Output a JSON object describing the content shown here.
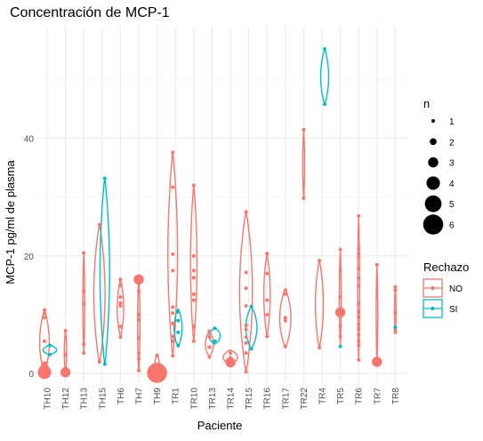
{
  "chart_data": {
    "type": "violin",
    "title": "Concentración de MCP-1",
    "xlabel": "Paciente",
    "ylabel": "MCP-1 pg/ml de plasma",
    "categories": [
      "TH10",
      "TH12",
      "TH13",
      "TH15",
      "TH6",
      "TH7",
      "TH9",
      "TR1",
      "TR10",
      "TR13",
      "TR14",
      "TR15",
      "TR16",
      "TR17",
      "TR22",
      "TR4",
      "TR5",
      "TR6",
      "TR7",
      "TR8"
    ],
    "ylim": [
      -1.5,
      59
    ],
    "yticks": [
      0,
      20,
      40
    ],
    "grid": true,
    "colors": {
      "NO": "#F8766D",
      "SI": "#00BFC4"
    },
    "legend_color": {
      "title": "Rechazo",
      "entries": [
        "NO",
        "SI"
      ],
      "placement": "right"
    },
    "legend_size": {
      "title": "n",
      "entries": [
        1,
        2,
        3,
        4,
        5,
        6
      ],
      "placement": "right"
    },
    "groups": [
      {
        "cat": "TH10",
        "rechazo": "NO",
        "ymin": 0,
        "ymax": 10.8,
        "width": 0.6
      },
      {
        "cat": "TH10",
        "rechazo": "SI",
        "ymin": 3.2,
        "ymax": 4.8,
        "width": 0.85
      },
      {
        "cat": "TH12",
        "rechazo": "NO",
        "ymin": 0,
        "ymax": 7.3,
        "width": 0.15
      },
      {
        "cat": "TH13",
        "rechazo": "NO",
        "ymin": 3.5,
        "ymax": 20.5,
        "width": 0.12
      },
      {
        "cat": "TH15",
        "rechazo": "NO",
        "ymin": 1.8,
        "ymax": 25.3,
        "width": 0.7
      },
      {
        "cat": "TH15",
        "rechazo": "SI",
        "ymin": 1.5,
        "ymax": 33.2,
        "width": 0.6
      },
      {
        "cat": "TH6",
        "rechazo": "NO",
        "ymin": 6.2,
        "ymax": 16,
        "width": 0.4
      },
      {
        "cat": "TH7",
        "rechazo": "NO",
        "ymin": 0.5,
        "ymax": 16,
        "width": 0.15
      },
      {
        "cat": "TH9",
        "rechazo": "NO",
        "ymin": 0,
        "ymax": 3.1,
        "width": 0.3
      },
      {
        "cat": "TR1",
        "rechazo": "NO",
        "ymin": 3,
        "ymax": 37.6,
        "width": 0.6
      },
      {
        "cat": "TR1",
        "rechazo": "SI",
        "ymin": 4.5,
        "ymax": 11,
        "width": 0.5
      },
      {
        "cat": "TR10",
        "rechazo": "NO",
        "ymin": 5.5,
        "ymax": 32,
        "width": 0.4
      },
      {
        "cat": "TR13",
        "rechazo": "NO",
        "ymin": 2.8,
        "ymax": 7.2,
        "width": 0.5
      },
      {
        "cat": "TR13",
        "rechazo": "SI",
        "ymin": 5,
        "ymax": 7.8,
        "width": 0.7
      },
      {
        "cat": "TR14",
        "rechazo": "NO",
        "ymin": 1.5,
        "ymax": 4,
        "width": 0.9
      },
      {
        "cat": "TR15",
        "rechazo": "NO",
        "ymin": 0.3,
        "ymax": 27.5,
        "width": 0.8
      },
      {
        "cat": "TR15",
        "rechazo": "SI",
        "ymin": 4.2,
        "ymax": 11.4,
        "width": 0.7
      },
      {
        "cat": "TR16",
        "rechazo": "NO",
        "ymin": 6.3,
        "ymax": 20.4,
        "width": 0.4
      },
      {
        "cat": "TR17",
        "rechazo": "NO",
        "ymin": 4.4,
        "ymax": 14.4,
        "width": 0.7
      },
      {
        "cat": "TR22",
        "rechazo": "NO",
        "ymin": 29.8,
        "ymax": 41.5,
        "width": 0.12
      },
      {
        "cat": "TR4",
        "rechazo": "NO",
        "ymin": 4.4,
        "ymax": 19.2,
        "width": 0.5
      },
      {
        "cat": "TR4",
        "rechazo": "SI",
        "ymin": 45.8,
        "ymax": 55.2,
        "width": 0.5
      },
      {
        "cat": "TR5",
        "rechazo": "NO",
        "ymin": 4.6,
        "ymax": 21.1,
        "width": 0.12
      },
      {
        "cat": "TR6",
        "rechazo": "NO",
        "ymin": 2.3,
        "ymax": 26.8,
        "width": 0.12
      },
      {
        "cat": "TR7",
        "rechazo": "NO",
        "ymin": 2,
        "ymax": 18.5,
        "width": 0.1
      },
      {
        "cat": "TR8",
        "rechazo": "NO",
        "ymin": 7,
        "ymax": 14.7,
        "width": 0.1
      }
    ],
    "points": [
      {
        "cat": "TH10",
        "rechazo": "NO",
        "y": 10.8,
        "n": 1
      },
      {
        "cat": "TH10",
        "rechazo": "NO",
        "y": 10.2,
        "n": 1
      },
      {
        "cat": "TH10",
        "rechazo": "NO",
        "y": 9.5,
        "n": 1
      },
      {
        "cat": "TH10",
        "rechazo": "NO",
        "y": 5.5,
        "n": 1
      },
      {
        "cat": "TH10",
        "rechazo": "NO",
        "y": 1.5,
        "n": 2
      },
      {
        "cat": "TH10",
        "rechazo": "NO",
        "y": 0.7,
        "n": 3
      },
      {
        "cat": "TH10",
        "rechazo": "NO",
        "y": 0.2,
        "n": 4
      },
      {
        "cat": "TH10",
        "rechazo": "SI",
        "y": 4.8,
        "n": 1
      },
      {
        "cat": "TH10",
        "rechazo": "SI",
        "y": 3.2,
        "n": 1
      },
      {
        "cat": "TH12",
        "rechazo": "NO",
        "y": 7.3,
        "n": 1
      },
      {
        "cat": "TH12",
        "rechazo": "NO",
        "y": 3.2,
        "n": 1
      },
      {
        "cat": "TH12",
        "rechazo": "NO",
        "y": 0.2,
        "n": 3
      },
      {
        "cat": "TH13",
        "rechazo": "NO",
        "y": 20.5,
        "n": 1
      },
      {
        "cat": "TH13",
        "rechazo": "NO",
        "y": 14,
        "n": 1
      },
      {
        "cat": "TH13",
        "rechazo": "NO",
        "y": 11.8,
        "n": 1
      },
      {
        "cat": "TH13",
        "rechazo": "NO",
        "y": 5,
        "n": 1
      },
      {
        "cat": "TH13",
        "rechazo": "NO",
        "y": 3.5,
        "n": 1
      },
      {
        "cat": "TH15",
        "rechazo": "NO",
        "y": 25.3,
        "n": 1
      },
      {
        "cat": "TH15",
        "rechazo": "NO",
        "y": 2,
        "n": 1
      },
      {
        "cat": "TH15",
        "rechazo": "SI",
        "y": 33.2,
        "n": 1
      },
      {
        "cat": "TH15",
        "rechazo": "SI",
        "y": 1.6,
        "n": 1
      },
      {
        "cat": "TH6",
        "rechazo": "NO",
        "y": 16,
        "n": 1
      },
      {
        "cat": "TH6",
        "rechazo": "NO",
        "y": 15,
        "n": 1
      },
      {
        "cat": "TH6",
        "rechazo": "NO",
        "y": 13,
        "n": 1
      },
      {
        "cat": "TH6",
        "rechazo": "NO",
        "y": 12,
        "n": 1
      },
      {
        "cat": "TH6",
        "rechazo": "NO",
        "y": 11.5,
        "n": 1
      },
      {
        "cat": "TH6",
        "rechazo": "NO",
        "y": 8,
        "n": 1
      },
      {
        "cat": "TH6",
        "rechazo": "NO",
        "y": 6.2,
        "n": 1
      },
      {
        "cat": "TH7",
        "rechazo": "NO",
        "y": 16,
        "n": 3
      },
      {
        "cat": "TH7",
        "rechazo": "NO",
        "y": 14,
        "n": 1
      },
      {
        "cat": "TH7",
        "rechazo": "NO",
        "y": 10,
        "n": 1
      },
      {
        "cat": "TH7",
        "rechazo": "NO",
        "y": 9.2,
        "n": 1
      },
      {
        "cat": "TH7",
        "rechazo": "NO",
        "y": 6,
        "n": 1
      },
      {
        "cat": "TH7",
        "rechazo": "NO",
        "y": 3.5,
        "n": 1
      },
      {
        "cat": "TH7",
        "rechazo": "NO",
        "y": 2.5,
        "n": 1
      },
      {
        "cat": "TH7",
        "rechazo": "NO",
        "y": 0.5,
        "n": 1
      },
      {
        "cat": "TH9",
        "rechazo": "NO",
        "y": 3.1,
        "n": 1
      },
      {
        "cat": "TH9",
        "rechazo": "NO",
        "y": 1.5,
        "n": 1
      },
      {
        "cat": "TH9",
        "rechazo": "NO",
        "y": 0.1,
        "n": 6
      },
      {
        "cat": "TR1",
        "rechazo": "NO",
        "y": 37.6,
        "n": 1
      },
      {
        "cat": "TR1",
        "rechazo": "NO",
        "y": 31.7,
        "n": 1
      },
      {
        "cat": "TR1",
        "rechazo": "NO",
        "y": 20.3,
        "n": 1
      },
      {
        "cat": "TR1",
        "rechazo": "NO",
        "y": 17.5,
        "n": 1
      },
      {
        "cat": "TR1",
        "rechazo": "NO",
        "y": 11.3,
        "n": 1
      },
      {
        "cat": "TR1",
        "rechazo": "NO",
        "y": 10.3,
        "n": 1
      },
      {
        "cat": "TR1",
        "rechazo": "NO",
        "y": 8.5,
        "n": 1
      },
      {
        "cat": "TR1",
        "rechazo": "NO",
        "y": 6.3,
        "n": 1
      },
      {
        "cat": "TR1",
        "rechazo": "NO",
        "y": 5.5,
        "n": 1
      },
      {
        "cat": "TR1",
        "rechazo": "NO",
        "y": 3,
        "n": 1
      },
      {
        "cat": "TR1",
        "rechazo": "SI",
        "y": 10.5,
        "n": 1
      },
      {
        "cat": "TR1",
        "rechazo": "SI",
        "y": 9,
        "n": 1
      },
      {
        "cat": "TR1",
        "rechazo": "SI",
        "y": 7,
        "n": 1
      },
      {
        "cat": "TR1",
        "rechazo": "SI",
        "y": 4.8,
        "n": 1
      },
      {
        "cat": "TR10",
        "rechazo": "NO",
        "y": 32,
        "n": 1
      },
      {
        "cat": "TR10",
        "rechazo": "NO",
        "y": 20,
        "n": 1
      },
      {
        "cat": "TR10",
        "rechazo": "NO",
        "y": 17.5,
        "n": 1
      },
      {
        "cat": "TR10",
        "rechazo": "NO",
        "y": 16.3,
        "n": 1
      },
      {
        "cat": "TR10",
        "rechazo": "NO",
        "y": 13.5,
        "n": 1
      },
      {
        "cat": "TR10",
        "rechazo": "NO",
        "y": 12.5,
        "n": 1
      },
      {
        "cat": "TR10",
        "rechazo": "NO",
        "y": 8,
        "n": 1
      },
      {
        "cat": "TR10",
        "rechazo": "NO",
        "y": 5.5,
        "n": 1
      },
      {
        "cat": "TR13",
        "rechazo": "NO",
        "y": 7.2,
        "n": 1
      },
      {
        "cat": "TR13",
        "rechazo": "NO",
        "y": 6.2,
        "n": 1
      },
      {
        "cat": "TR13",
        "rechazo": "NO",
        "y": 4.5,
        "n": 1
      },
      {
        "cat": "TR13",
        "rechazo": "NO",
        "y": 2.8,
        "n": 1
      },
      {
        "cat": "TR13",
        "rechazo": "SI",
        "y": 7.7,
        "n": 1
      },
      {
        "cat": "TR13",
        "rechazo": "SI",
        "y": 5.5,
        "n": 1
      },
      {
        "cat": "TR14",
        "rechazo": "NO",
        "y": 3.5,
        "n": 1
      },
      {
        "cat": "TR14",
        "rechazo": "NO",
        "y": 2.7,
        "n": 1
      },
      {
        "cat": "TR14",
        "rechazo": "NO",
        "y": 1.9,
        "n": 3
      },
      {
        "cat": "TR15",
        "rechazo": "NO",
        "y": 27.5,
        "n": 1
      },
      {
        "cat": "TR15",
        "rechazo": "NO",
        "y": 17.2,
        "n": 1
      },
      {
        "cat": "TR15",
        "rechazo": "NO",
        "y": 14.5,
        "n": 1
      },
      {
        "cat": "TR15",
        "rechazo": "NO",
        "y": 11.5,
        "n": 1
      },
      {
        "cat": "TR15",
        "rechazo": "NO",
        "y": 8.2,
        "n": 1
      },
      {
        "cat": "TR15",
        "rechazo": "NO",
        "y": 7.5,
        "n": 1
      },
      {
        "cat": "TR15",
        "rechazo": "NO",
        "y": 6.2,
        "n": 1
      },
      {
        "cat": "TR15",
        "rechazo": "NO",
        "y": 5.2,
        "n": 1
      },
      {
        "cat": "TR15",
        "rechazo": "NO",
        "y": 3.5,
        "n": 1
      },
      {
        "cat": "TR15",
        "rechazo": "NO",
        "y": 0.3,
        "n": 1
      },
      {
        "cat": "TR15",
        "rechazo": "SI",
        "y": 11.4,
        "n": 1
      },
      {
        "cat": "TR15",
        "rechazo": "SI",
        "y": 4.2,
        "n": 1
      },
      {
        "cat": "TR16",
        "rechazo": "NO",
        "y": 20.4,
        "n": 1
      },
      {
        "cat": "TR16",
        "rechazo": "NO",
        "y": 17,
        "n": 1
      },
      {
        "cat": "TR16",
        "rechazo": "NO",
        "y": 12.5,
        "n": 1
      },
      {
        "cat": "TR16",
        "rechazo": "NO",
        "y": 10,
        "n": 1
      },
      {
        "cat": "TR16",
        "rechazo": "NO",
        "y": 6.3,
        "n": 1
      },
      {
        "cat": "TR17",
        "rechazo": "NO",
        "y": 14.2,
        "n": 1
      },
      {
        "cat": "TR17",
        "rechazo": "NO",
        "y": 13.5,
        "n": 1
      },
      {
        "cat": "TR17",
        "rechazo": "NO",
        "y": 9.5,
        "n": 1
      },
      {
        "cat": "TR17",
        "rechazo": "NO",
        "y": 9,
        "n": 1
      },
      {
        "cat": "TR17",
        "rechazo": "NO",
        "y": 4.6,
        "n": 1
      },
      {
        "cat": "TR22",
        "rechazo": "NO",
        "y": 41.5,
        "n": 1
      },
      {
        "cat": "TR22",
        "rechazo": "NO",
        "y": 29.8,
        "n": 1
      },
      {
        "cat": "TR4",
        "rechazo": "NO",
        "y": 19.2,
        "n": 1
      },
      {
        "cat": "TR4",
        "rechazo": "NO",
        "y": 4.4,
        "n": 1
      },
      {
        "cat": "TR4",
        "rechazo": "SI",
        "y": 55.2,
        "n": 1
      },
      {
        "cat": "TR4",
        "rechazo": "SI",
        "y": 45.8,
        "n": 1
      },
      {
        "cat": "TR5",
        "rechazo": "NO",
        "y": 21.1,
        "n": 1
      },
      {
        "cat": "TR5",
        "rechazo": "NO",
        "y": 17.5,
        "n": 1
      },
      {
        "cat": "TR5",
        "rechazo": "NO",
        "y": 13,
        "n": 1
      },
      {
        "cat": "TR5",
        "rechazo": "NO",
        "y": 10.4,
        "n": 3
      },
      {
        "cat": "TR5",
        "rechazo": "NO",
        "y": 8,
        "n": 1
      },
      {
        "cat": "TR5",
        "rechazo": "NO",
        "y": 6.3,
        "n": 1
      },
      {
        "cat": "TR5",
        "rechazo": "SI",
        "y": 4.6,
        "n": 1
      },
      {
        "cat": "TR6",
        "rechazo": "NO",
        "y": 26.8,
        "n": 1
      },
      {
        "cat": "TR6",
        "rechazo": "NO",
        "y": 21.3,
        "n": 1
      },
      {
        "cat": "TR6",
        "rechazo": "NO",
        "y": 20.4,
        "n": 1
      },
      {
        "cat": "TR6",
        "rechazo": "NO",
        "y": 19.8,
        "n": 1
      },
      {
        "cat": "TR6",
        "rechazo": "NO",
        "y": 17.9,
        "n": 1
      },
      {
        "cat": "TR6",
        "rechazo": "NO",
        "y": 16.2,
        "n": 1
      },
      {
        "cat": "TR6",
        "rechazo": "NO",
        "y": 14.9,
        "n": 1
      },
      {
        "cat": "TR6",
        "rechazo": "NO",
        "y": 11.9,
        "n": 1
      },
      {
        "cat": "TR6",
        "rechazo": "NO",
        "y": 10.5,
        "n": 1
      },
      {
        "cat": "TR6",
        "rechazo": "NO",
        "y": 9.6,
        "n": 1
      },
      {
        "cat": "TR6",
        "rechazo": "NO",
        "y": 8.4,
        "n": 1
      },
      {
        "cat": "TR6",
        "rechazo": "NO",
        "y": 7.6,
        "n": 1
      },
      {
        "cat": "TR6",
        "rechazo": "NO",
        "y": 6.6,
        "n": 1
      },
      {
        "cat": "TR6",
        "rechazo": "NO",
        "y": 5.5,
        "n": 1
      },
      {
        "cat": "TR6",
        "rechazo": "NO",
        "y": 4.8,
        "n": 1
      },
      {
        "cat": "TR6",
        "rechazo": "NO",
        "y": 2.3,
        "n": 1
      },
      {
        "cat": "TR7",
        "rechazo": "NO",
        "y": 18.5,
        "n": 1
      },
      {
        "cat": "TR7",
        "rechazo": "NO",
        "y": 2,
        "n": 3
      },
      {
        "cat": "TR8",
        "rechazo": "NO",
        "y": 14.7,
        "n": 1
      },
      {
        "cat": "TR8",
        "rechazo": "NO",
        "y": 14.2,
        "n": 1
      },
      {
        "cat": "TR8",
        "rechazo": "NO",
        "y": 10.3,
        "n": 1
      },
      {
        "cat": "TR8",
        "rechazo": "NO",
        "y": 7.5,
        "n": 1
      },
      {
        "cat": "TR8",
        "rechazo": "NO",
        "y": 7,
        "n": 1
      },
      {
        "cat": "TR8",
        "rechazo": "SI",
        "y": 7.9,
        "n": 1
      }
    ]
  }
}
